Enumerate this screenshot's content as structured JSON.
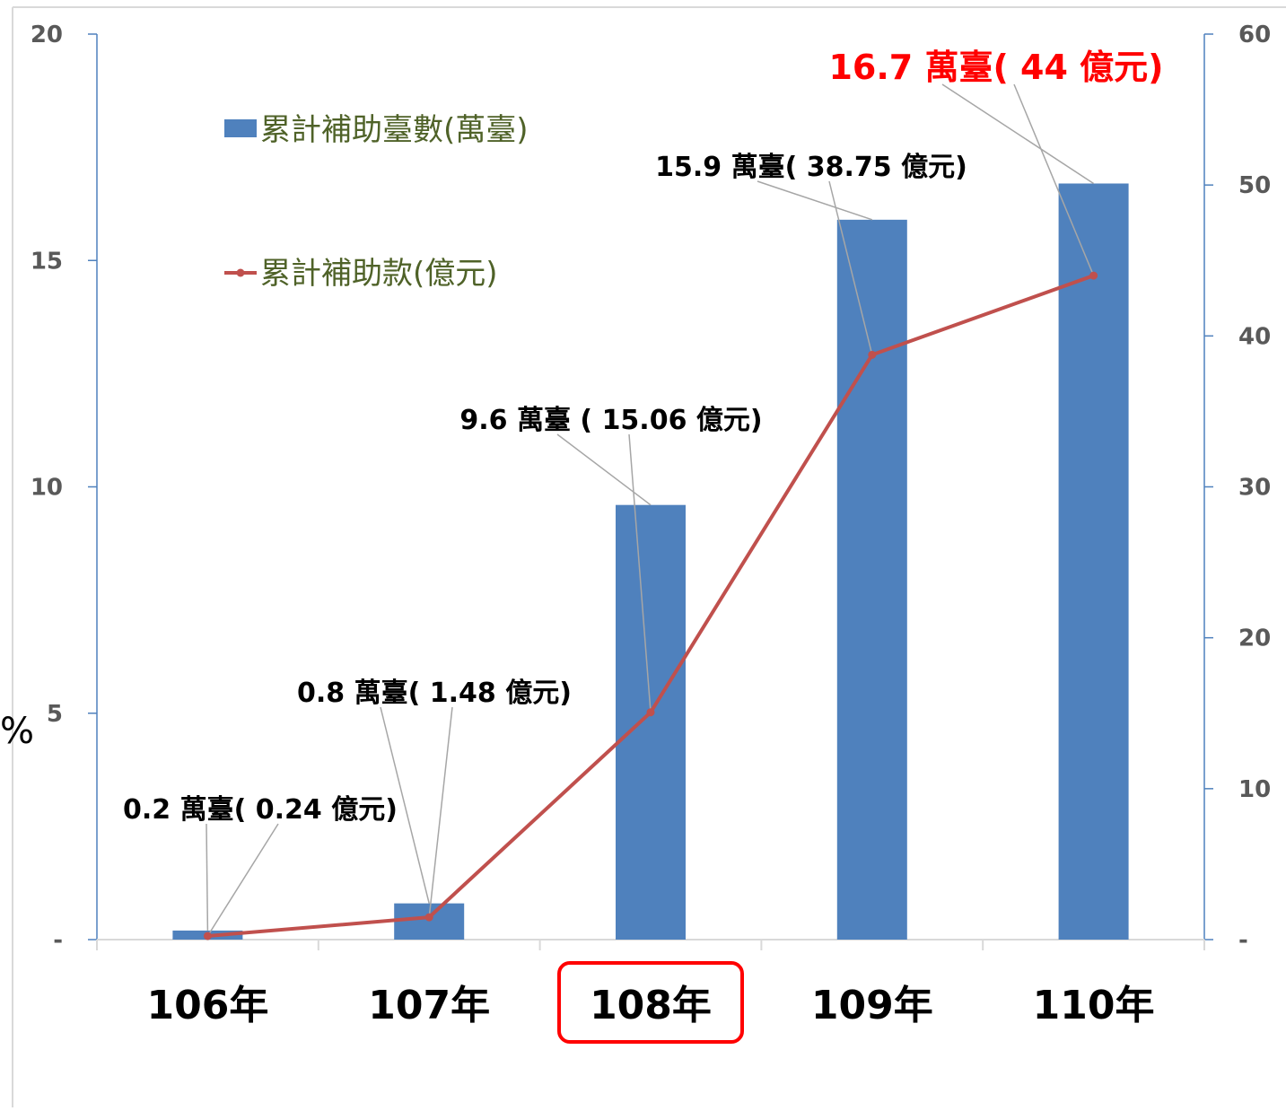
{
  "colors": {
    "bar": "#4f81bd",
    "line": "#c0504d",
    "axis_right": "#4f81bd",
    "highlight": "#ff0000",
    "legend_text": "#4f6228"
  },
  "side_text": "%",
  "chart_data": {
    "type": "bar+line",
    "categories": [
      "106年",
      "107年",
      "108年",
      "109年",
      "110年"
    ],
    "highlighted_category": "108年",
    "series": [
      {
        "name": "累計補助臺數(萬臺)",
        "type": "bar",
        "axis": "left",
        "values": [
          0.2,
          0.8,
          9.6,
          15.9,
          16.7
        ]
      },
      {
        "name": "累計補助款(億元)",
        "type": "line",
        "axis": "right",
        "values": [
          0.24,
          1.48,
          15.06,
          38.75,
          44
        ]
      }
    ],
    "y_left": {
      "range": [
        0,
        20
      ],
      "ticks": [
        "-",
        "5",
        "10",
        "15",
        "20"
      ]
    },
    "y_right": {
      "range": [
        0,
        60
      ],
      "ticks": [
        "-",
        "10",
        "20",
        "30",
        "40",
        "50",
        "60"
      ]
    },
    "data_labels": [
      {
        "text": "0.2 萬臺( 0.24 億元)",
        "highlight": false
      },
      {
        "text": "0.8 萬臺( 1.48 億元)",
        "highlight": false
      },
      {
        "text": "9.6 萬臺 ( 15.06 億元)",
        "highlight": false
      },
      {
        "text": "15.9 萬臺( 38.75 億元)",
        "highlight": false
      },
      {
        "text": "16.7 萬臺( 44 億元)",
        "highlight": true
      }
    ],
    "legend": {
      "placement": "top-left"
    },
    "grid": false
  }
}
